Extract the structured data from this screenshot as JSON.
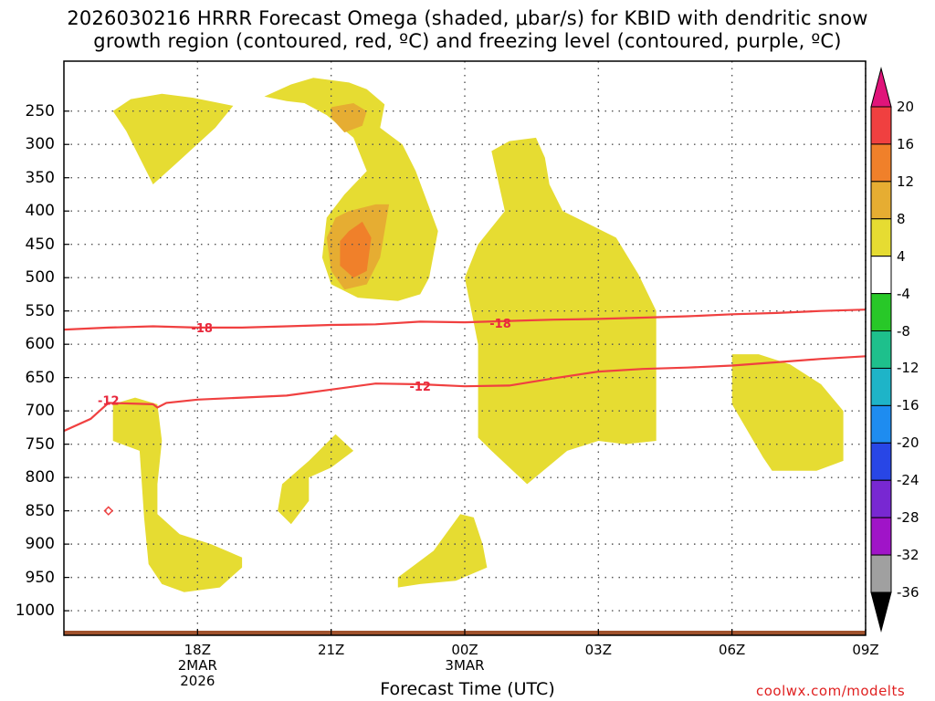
{
  "chart_data": {
    "type": "contour",
    "title_line1": "2026030216 HRRR Forecast Omega (shaded, μbar/s) for KBID with dendritic snow",
    "title_line2": "growth region (contoured, red, ºC) and freezing level (contoured, purple, ºC)",
    "xlabel": "Forecast Time (UTC)",
    "x_range_hours": [
      -2,
      16
    ],
    "y_range_hpa": [
      1030,
      175
    ],
    "y_ticks": [
      {
        "p": 250,
        "label": "250"
      },
      {
        "p": 300,
        "label": "300"
      },
      {
        "p": 350,
        "label": "350"
      },
      {
        "p": 400,
        "label": "400"
      },
      {
        "p": 450,
        "label": "450"
      },
      {
        "p": 500,
        "label": "500"
      },
      {
        "p": 550,
        "label": "550"
      },
      {
        "p": 600,
        "label": "600"
      },
      {
        "p": 650,
        "label": "650"
      },
      {
        "p": 700,
        "label": "700"
      },
      {
        "p": 750,
        "label": "750"
      },
      {
        "p": 800,
        "label": "800"
      },
      {
        "p": 850,
        "label": "850"
      },
      {
        "p": 900,
        "label": "900"
      },
      {
        "p": 950,
        "label": "950"
      },
      {
        "p": 1000,
        "label": "1000"
      }
    ],
    "x_ticks": [
      {
        "h": 1,
        "lines": [
          "18Z",
          "2MAR",
          "2026"
        ]
      },
      {
        "h": 4,
        "lines": [
          "21Z"
        ]
      },
      {
        "h": 7,
        "lines": [
          "00Z",
          "3MAR"
        ]
      },
      {
        "h": 10,
        "lines": [
          "03Z"
        ]
      },
      {
        "h": 13,
        "lines": [
          "06Z"
        ]
      },
      {
        "h": 16,
        "lines": [
          "09Z"
        ]
      }
    ],
    "colorbar": {
      "levels": [
        {
          "label": "20",
          "color": "#e8388a"
        },
        {
          "label": "16",
          "color": "#f04040"
        },
        {
          "label": "12",
          "color": "#f0802a"
        },
        {
          "label": "8",
          "color": "#e6ad32"
        },
        {
          "label": "4",
          "color": "#e6dc32"
        },
        {
          "label": "-4",
          "color": "#ffffff"
        },
        {
          "label": "-8",
          "color": "#28c828"
        },
        {
          "label": "-12",
          "color": "#1ec08c"
        },
        {
          "label": "-16",
          "color": "#1eb4c8"
        },
        {
          "label": "-20",
          "color": "#1e8cf0"
        },
        {
          "label": "-24",
          "color": "#2846e6"
        },
        {
          "label": "-28",
          "color": "#7828d2"
        },
        {
          "label": "-32",
          "color": "#a014c8"
        },
        {
          "label": "-36",
          "color": "#a0a0a0"
        }
      ],
      "top_arrow_color": "#e0147a",
      "bottom_arrow_color": "#000000"
    },
    "omega_regions": [
      {
        "level": 4,
        "color": "#e6dc32",
        "points": [
          [
            -0.9,
            250
          ],
          [
            -0.5,
            232
          ],
          [
            0.2,
            224
          ],
          [
            0.9,
            230
          ],
          [
            1.8,
            242
          ],
          [
            1.4,
            275
          ],
          [
            0.5,
            330
          ],
          [
            0.0,
            360
          ],
          [
            -0.3,
            320
          ],
          [
            -0.6,
            280
          ]
        ]
      },
      {
        "level": 4,
        "color": "#e6dc32",
        "points": [
          [
            2.5,
            228
          ],
          [
            3.1,
            210
          ],
          [
            3.6,
            200
          ],
          [
            4.4,
            207
          ],
          [
            4.8,
            217
          ],
          [
            5.2,
            240
          ],
          [
            5.1,
            275
          ],
          [
            5.6,
            300
          ],
          [
            5.9,
            340
          ],
          [
            6.4,
            430
          ],
          [
            6.2,
            500
          ],
          [
            6.0,
            525
          ],
          [
            5.5,
            535
          ],
          [
            4.6,
            530
          ],
          [
            4.0,
            510
          ],
          [
            3.8,
            470
          ],
          [
            3.9,
            410
          ],
          [
            4.3,
            375
          ],
          [
            4.8,
            340
          ],
          [
            4.5,
            290
          ],
          [
            3.9,
            256
          ],
          [
            3.4,
            238
          ],
          [
            3.0,
            235
          ]
        ]
      },
      {
        "level": 8,
        "color": "#e6ad32",
        "points": [
          [
            4.0,
            244
          ],
          [
            4.5,
            238
          ],
          [
            4.8,
            250
          ],
          [
            4.7,
            272
          ],
          [
            4.3,
            282
          ],
          [
            4.0,
            260
          ]
        ]
      },
      {
        "level": 8,
        "color": "#e6ad32",
        "points": [
          [
            4.1,
            410
          ],
          [
            4.4,
            400
          ],
          [
            5.0,
            390
          ],
          [
            5.3,
            390
          ],
          [
            5.1,
            470
          ],
          [
            4.8,
            510
          ],
          [
            4.3,
            518
          ],
          [
            4.0,
            490
          ],
          [
            3.9,
            440
          ]
        ]
      },
      {
        "level": 12,
        "color": "#f0802a",
        "points": [
          [
            4.4,
            430
          ],
          [
            4.7,
            416
          ],
          [
            4.9,
            440
          ],
          [
            4.8,
            490
          ],
          [
            4.5,
            500
          ],
          [
            4.2,
            482
          ],
          [
            4.2,
            445
          ]
        ]
      },
      {
        "level": 4,
        "color": "#e6dc32",
        "points": [
          [
            7.6,
            310
          ],
          [
            8.0,
            295
          ],
          [
            8.6,
            290
          ],
          [
            8.8,
            320
          ],
          [
            8.9,
            360
          ],
          [
            9.2,
            400
          ],
          [
            10.4,
            440
          ],
          [
            10.9,
            495
          ],
          [
            11.3,
            550
          ],
          [
            11.3,
            660
          ],
          [
            11.3,
            745
          ],
          [
            10.6,
            750
          ],
          [
            10.0,
            745
          ],
          [
            9.3,
            760
          ],
          [
            8.4,
            810
          ],
          [
            7.6,
            760
          ],
          [
            7.3,
            740
          ],
          [
            7.3,
            600
          ],
          [
            7.0,
            500
          ],
          [
            7.3,
            450
          ],
          [
            7.9,
            400
          ]
        ]
      },
      {
        "level": 4,
        "color": "#e6dc32",
        "points": [
          [
            13.0,
            615
          ],
          [
            13.6,
            615
          ],
          [
            14.3,
            630
          ],
          [
            15.0,
            660
          ],
          [
            15.5,
            700
          ],
          [
            15.5,
            775
          ],
          [
            14.9,
            790
          ],
          [
            13.9,
            790
          ],
          [
            13.7,
            770
          ],
          [
            13.0,
            690
          ]
        ]
      },
      {
        "level": 4,
        "color": "#e6dc32",
        "points": [
          [
            -0.9,
            690
          ],
          [
            -0.4,
            680
          ],
          [
            0.1,
            690
          ],
          [
            0.2,
            745
          ],
          [
            0.1,
            810
          ],
          [
            0.1,
            855
          ],
          [
            0.6,
            885
          ],
          [
            1.3,
            900
          ],
          [
            2.0,
            920
          ],
          [
            2.0,
            935
          ],
          [
            1.5,
            965
          ],
          [
            0.7,
            972
          ],
          [
            0.2,
            960
          ],
          [
            -0.1,
            930
          ],
          [
            -0.2,
            860
          ],
          [
            -0.3,
            760
          ],
          [
            -0.9,
            745
          ]
        ]
      },
      {
        "level": 4,
        "color": "#e6dc32",
        "points": [
          [
            3.5,
            775
          ],
          [
            4.1,
            735
          ],
          [
            4.5,
            760
          ],
          [
            4.0,
            785
          ],
          [
            3.5,
            800
          ],
          [
            3.5,
            835
          ],
          [
            3.1,
            870
          ],
          [
            2.8,
            850
          ],
          [
            2.9,
            810
          ]
        ]
      },
      {
        "level": 4,
        "color": "#e6dc32",
        "points": [
          [
            5.5,
            950
          ],
          [
            6.3,
            910
          ],
          [
            6.9,
            855
          ],
          [
            7.2,
            860
          ],
          [
            7.4,
            900
          ],
          [
            7.5,
            935
          ],
          [
            6.8,
            955
          ],
          [
            6.0,
            960
          ],
          [
            5.5,
            965
          ]
        ]
      }
    ],
    "dendritic_isotherms": [
      {
        "label": "-18",
        "label_at": [
          1.1,
          575
        ],
        "label2": "-18",
        "label2_at": [
          7.8,
          568
        ],
        "points": [
          [
            -2.0,
            578
          ],
          [
            -1.0,
            575
          ],
          [
            0.0,
            573
          ],
          [
            1.0,
            575
          ],
          [
            2.0,
            575
          ],
          [
            3.0,
            573
          ],
          [
            4.0,
            571
          ],
          [
            5.0,
            570
          ],
          [
            6.0,
            566
          ],
          [
            7.0,
            567
          ],
          [
            8.0,
            565
          ],
          [
            9.0,
            563
          ],
          [
            10.0,
            562
          ],
          [
            11.0,
            560
          ],
          [
            12.0,
            558
          ],
          [
            13.0,
            555
          ],
          [
            14.0,
            553
          ],
          [
            15.0,
            550
          ],
          [
            16.0,
            548
          ],
          [
            16.9,
            546
          ]
        ]
      },
      {
        "label": "-12",
        "label_at": [
          -1.0,
          684
        ],
        "label2": "-12",
        "label2_at": [
          6.0,
          663
        ],
        "points": [
          [
            -2.0,
            730
          ],
          [
            -1.4,
            712
          ],
          [
            -1.2,
            700
          ],
          [
            -1.0,
            688
          ],
          [
            0.0,
            690
          ],
          [
            0.1,
            695
          ],
          [
            0.3,
            688
          ],
          [
            1.0,
            683
          ],
          [
            2.0,
            680
          ],
          [
            3.0,
            677
          ],
          [
            4.0,
            668
          ],
          [
            5.0,
            659
          ],
          [
            6.0,
            660
          ],
          [
            7.0,
            663
          ],
          [
            8.0,
            662
          ],
          [
            9.0,
            651
          ],
          [
            10.0,
            641
          ],
          [
            11.0,
            637
          ],
          [
            12.0,
            635
          ],
          [
            13.0,
            632
          ],
          [
            14.0,
            627
          ],
          [
            15.0,
            622
          ],
          [
            16.0,
            618
          ],
          [
            16.9,
            615
          ]
        ]
      }
    ],
    "dendritic_point": {
      "label": "o",
      "h": -1.0,
      "p": 850
    }
  },
  "ground_color": "#a0522d",
  "credit": "coolwx.com/modelts"
}
